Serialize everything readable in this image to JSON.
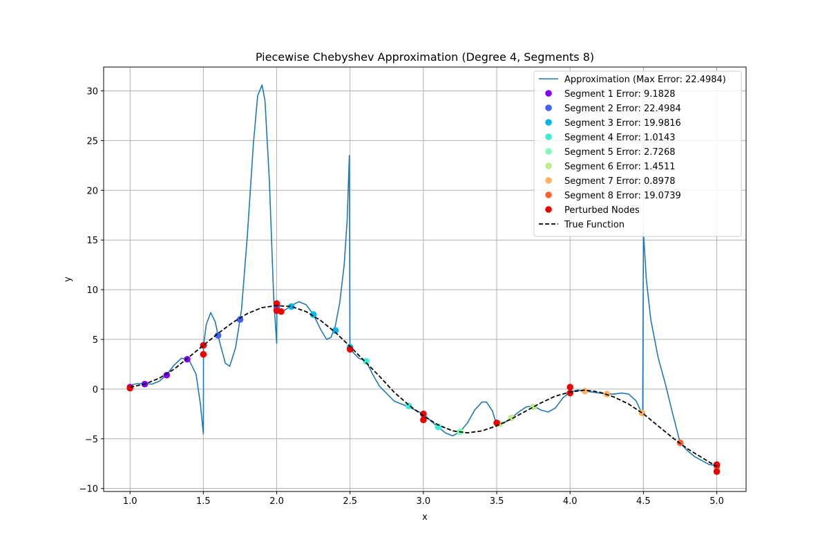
{
  "chart_data": {
    "type": "line",
    "title": "Piecewise Chebyshev Approximation (Degree 4, Segments 8)",
    "xlabel": "x",
    "ylabel": "y",
    "xlim": [
      0.82,
      5.2
    ],
    "ylim": [
      -10.3,
      32.4
    ],
    "xticks": [
      "1.0",
      "1.5",
      "2.0",
      "2.5",
      "3.0",
      "3.5",
      "4.0",
      "4.5",
      "5.0"
    ],
    "yticks": [
      "−10",
      "−5",
      "0",
      "5",
      "10",
      "15",
      "20",
      "25",
      "30"
    ],
    "grid": true,
    "legend_position": "top-right",
    "colors": {
      "approximation": "#1f77b4",
      "true_function": "#000000",
      "perturbed": "#ee0000"
    },
    "approximation": {
      "name": "Approximation (Max Error: 22.4984)",
      "points": [
        [
          1.0,
          0.4
        ],
        [
          1.05,
          0.55
        ],
        [
          1.1,
          0.55
        ],
        [
          1.15,
          0.5
        ],
        [
          1.2,
          0.8
        ],
        [
          1.25,
          1.45
        ],
        [
          1.3,
          2.4
        ],
        [
          1.35,
          3.1
        ],
        [
          1.4,
          3.0
        ],
        [
          1.45,
          1.5
        ],
        [
          1.48,
          -1.5
        ],
        [
          1.5,
          -4.5
        ],
        [
          1.501,
          4.4
        ],
        [
          1.52,
          6.5
        ],
        [
          1.55,
          7.7
        ],
        [
          1.58,
          6.8
        ],
        [
          1.61,
          4.8
        ],
        [
          1.65,
          2.6
        ],
        [
          1.68,
          2.3
        ],
        [
          1.72,
          4.2
        ],
        [
          1.76,
          8.0
        ],
        [
          1.8,
          15.5
        ],
        [
          1.84,
          24.5
        ],
        [
          1.87,
          29.5
        ],
        [
          1.9,
          30.6
        ],
        [
          1.92,
          29.0
        ],
        [
          1.95,
          21.0
        ],
        [
          1.98,
          9.0
        ],
        [
          2.0,
          4.6
        ],
        [
          2.001,
          7.7
        ],
        [
          2.03,
          7.7
        ],
        [
          2.06,
          8.0
        ],
        [
          2.1,
          8.4
        ],
        [
          2.15,
          8.8
        ],
        [
          2.2,
          8.5
        ],
        [
          2.25,
          7.5
        ],
        [
          2.3,
          6.0
        ],
        [
          2.34,
          5.0
        ],
        [
          2.37,
          5.2
        ],
        [
          2.4,
          6.4
        ],
        [
          2.43,
          8.7
        ],
        [
          2.46,
          12.5
        ],
        [
          2.48,
          17.0
        ],
        [
          2.495,
          23.5
        ],
        [
          2.499,
          4.5
        ],
        [
          2.52,
          3.7
        ],
        [
          2.56,
          3.1
        ],
        [
          2.61,
          2.8
        ],
        [
          2.65,
          1.6
        ],
        [
          2.7,
          0.3
        ],
        [
          2.8,
          -1.2
        ],
        [
          2.9,
          -1.8
        ],
        [
          3.0,
          -2.5
        ],
        [
          3.05,
          -3.2
        ],
        [
          3.1,
          -3.8
        ],
        [
          3.15,
          -4.4
        ],
        [
          3.2,
          -4.7
        ],
        [
          3.25,
          -4.3
        ],
        [
          3.3,
          -3.4
        ],
        [
          3.35,
          -2.1
        ],
        [
          3.4,
          -1.3
        ],
        [
          3.43,
          -1.3
        ],
        [
          3.47,
          -2.2
        ],
        [
          3.5,
          -3.6
        ],
        [
          3.55,
          -3.4
        ],
        [
          3.6,
          -2.9
        ],
        [
          3.65,
          -2.3
        ],
        [
          3.7,
          -1.8
        ],
        [
          3.75,
          -1.7
        ],
        [
          3.8,
          -2.1
        ],
        [
          3.85,
          -2.3
        ],
        [
          3.9,
          -1.9
        ],
        [
          3.95,
          -0.9
        ],
        [
          4.0,
          -0.3
        ],
        [
          4.05,
          -0.1
        ],
        [
          4.1,
          -0.2
        ],
        [
          4.15,
          -0.3
        ],
        [
          4.2,
          -0.4
        ],
        [
          4.25,
          -0.5
        ],
        [
          4.3,
          -0.5
        ],
        [
          4.35,
          -0.4
        ],
        [
          4.4,
          -0.5
        ],
        [
          4.45,
          -1.2
        ],
        [
          4.495,
          -2.6
        ],
        [
          4.5,
          15.8
        ],
        [
          4.52,
          11.0
        ],
        [
          4.55,
          7.0
        ],
        [
          4.6,
          3.2
        ],
        [
          4.65,
          0.5
        ],
        [
          4.7,
          -2.5
        ],
        [
          4.75,
          -5.4
        ],
        [
          4.8,
          -6.2
        ],
        [
          4.85,
          -6.8
        ],
        [
          4.9,
          -7.2
        ],
        [
          4.95,
          -7.6
        ],
        [
          5.0,
          -7.7
        ]
      ]
    },
    "true_function": {
      "name": "True Function",
      "points": [
        [
          1.0,
          0.2
        ],
        [
          1.1,
          0.5
        ],
        [
          1.2,
          1.1
        ],
        [
          1.3,
          2.0
        ],
        [
          1.4,
          3.2
        ],
        [
          1.5,
          4.4
        ],
        [
          1.6,
          5.6
        ],
        [
          1.7,
          6.7
        ],
        [
          1.8,
          7.6
        ],
        [
          1.9,
          8.2
        ],
        [
          2.0,
          8.4
        ],
        [
          2.1,
          8.3
        ],
        [
          2.2,
          7.8
        ],
        [
          2.3,
          6.9
        ],
        [
          2.4,
          5.7
        ],
        [
          2.5,
          4.3
        ],
        [
          2.6,
          2.8
        ],
        [
          2.7,
          1.3
        ],
        [
          2.8,
          -0.3
        ],
        [
          2.9,
          -1.6
        ],
        [
          3.0,
          -2.7
        ],
        [
          3.1,
          -3.6
        ],
        [
          3.2,
          -4.2
        ],
        [
          3.3,
          -4.4
        ],
        [
          3.4,
          -4.2
        ],
        [
          3.5,
          -3.7
        ],
        [
          3.6,
          -3.0
        ],
        [
          3.7,
          -2.2
        ],
        [
          3.8,
          -1.4
        ],
        [
          3.9,
          -0.7
        ],
        [
          4.0,
          -0.3
        ],
        [
          4.1,
          -0.1
        ],
        [
          4.2,
          -0.3
        ],
        [
          4.3,
          -0.8
        ],
        [
          4.4,
          -1.5
        ],
        [
          4.5,
          -2.5
        ],
        [
          4.6,
          -3.7
        ],
        [
          4.7,
          -4.9
        ],
        [
          4.8,
          -6.0
        ],
        [
          4.9,
          -6.9
        ],
        [
          5.0,
          -7.8
        ]
      ]
    },
    "segments": [
      {
        "name": "Segment 1 Error: 9.1828",
        "color": "#8000ff",
        "points": [
          [
            1.0,
            0.2
          ],
          [
            1.1,
            0.5
          ],
          [
            1.25,
            1.4
          ],
          [
            1.39,
            3.0
          ]
        ]
      },
      {
        "name": "Segment 2 Error: 22.4984",
        "color": "#4062fa",
        "points": [
          [
            1.5,
            4.4
          ],
          [
            1.6,
            5.4
          ],
          [
            1.75,
            7.0
          ],
          [
            2.0,
            8.3
          ]
        ]
      },
      {
        "name": "Segment 3 Error: 19.9816",
        "color": "#00b5eb",
        "points": [
          [
            2.1,
            8.3
          ],
          [
            2.25,
            7.5
          ],
          [
            2.4,
            5.9
          ],
          [
            2.5,
            4.2
          ]
        ]
      },
      {
        "name": "Segment 4 Error: 1.0143",
        "color": "#40ecd4",
        "points": [
          [
            2.61,
            2.8
          ],
          [
            2.9,
            -1.7
          ],
          [
            3.1,
            -3.8
          ],
          [
            3.25,
            -4.3
          ]
        ]
      },
      {
        "name": "Segment 5 Error: 2.7268",
        "color": "#80ffb4",
        "points": [
          [
            3.0,
            -2.6
          ],
          [
            3.25,
            -4.3
          ]
        ]
      },
      {
        "name": "Segment 6 Error: 1.4511",
        "color": "#c0eb8d",
        "points": [
          [
            3.6,
            -2.9
          ],
          [
            3.75,
            -1.8
          ],
          [
            3.52,
            -3.5
          ]
        ]
      },
      {
        "name": "Segment 7 Error: 0.8978",
        "color": "#ffb360",
        "points": [
          [
            4.1,
            -0.2
          ],
          [
            4.25,
            -0.5
          ],
          [
            4.49,
            -2.4
          ]
        ]
      },
      {
        "name": "Segment 8 Error: 19.0739",
        "color": "#ff6230",
        "points": [
          [
            4.75,
            -5.4
          ],
          [
            5.0,
            -7.8
          ]
        ]
      }
    ],
    "perturbed_nodes": {
      "name": "Perturbed Nodes",
      "points": [
        [
          1.0,
          0.1
        ],
        [
          1.5,
          4.4
        ],
        [
          1.5,
          3.5
        ],
        [
          2.0,
          8.6
        ],
        [
          2.0,
          7.9
        ],
        [
          2.03,
          7.8
        ],
        [
          2.5,
          4.0
        ],
        [
          3.0,
          -2.5
        ],
        [
          3.0,
          -3.1
        ],
        [
          3.5,
          -3.4
        ],
        [
          4.0,
          0.2
        ],
        [
          4.0,
          -0.4
        ],
        [
          5.0,
          -7.6
        ],
        [
          5.0,
          -8.3
        ]
      ]
    },
    "legend": [
      {
        "label": "Approximation (Max Error: 22.4984)",
        "kind": "line",
        "color": "#1f77b4"
      },
      {
        "label": "Segment 1 Error: 9.1828",
        "kind": "marker",
        "color": "#8000ff"
      },
      {
        "label": "Segment 2 Error: 22.4984",
        "kind": "marker",
        "color": "#4062fa"
      },
      {
        "label": "Segment 3 Error: 19.9816",
        "kind": "marker",
        "color": "#00b5eb"
      },
      {
        "label": "Segment 4 Error: 1.0143",
        "kind": "marker",
        "color": "#40ecd4"
      },
      {
        "label": "Segment 5 Error: 2.7268",
        "kind": "marker",
        "color": "#80ffb4"
      },
      {
        "label": "Segment 6 Error: 1.4511",
        "kind": "marker",
        "color": "#c0eb8d"
      },
      {
        "label": "Segment 7 Error: 0.8978",
        "kind": "marker",
        "color": "#ffb360"
      },
      {
        "label": "Segment 8 Error: 19.0739",
        "kind": "marker",
        "color": "#ff6230"
      },
      {
        "label": "Perturbed Nodes",
        "kind": "marker",
        "color": "#ee0000"
      },
      {
        "label": "True Function",
        "kind": "dashed",
        "color": "#000000"
      }
    ]
  }
}
